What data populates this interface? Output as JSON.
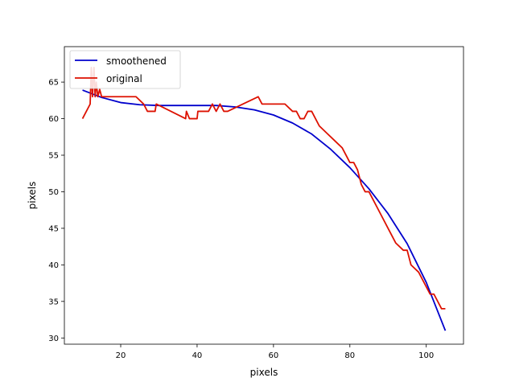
{
  "chart_data": {
    "type": "line",
    "title": "",
    "xlabel": "pixels",
    "ylabel": "pixels",
    "xlim": [
      5.25,
      109.75
    ],
    "ylim": [
      29.15,
      69.85
    ],
    "xticks": [
      20,
      40,
      60,
      80,
      100
    ],
    "yticks": [
      30,
      35,
      40,
      45,
      50,
      55,
      60,
      65
    ],
    "grid": false,
    "legend_position": "top-left",
    "series": [
      {
        "name": "smoothened",
        "color": "#0000cc",
        "x": [
          10,
          15,
          20,
          25,
          30,
          35,
          40,
          45,
          50,
          55,
          60,
          65,
          70,
          75,
          80,
          85,
          90,
          95,
          100,
          105
        ],
        "y": [
          63.9,
          62.9,
          62.2,
          61.9,
          61.8,
          61.8,
          61.8,
          61.8,
          61.6,
          61.2,
          60.5,
          59.4,
          57.9,
          55.8,
          53.3,
          50.4,
          47.0,
          42.9,
          37.6,
          31.0
        ]
      },
      {
        "name": "original",
        "color": "#dd1100",
        "x": [
          10,
          12,
          12.3,
          12.6,
          13,
          13.3,
          13.6,
          14,
          14.5,
          15,
          16,
          20,
          24,
          26,
          27,
          29,
          29.3,
          37,
          37.2,
          38,
          40,
          40.2,
          43,
          44,
          45,
          46,
          47,
          48,
          56,
          57,
          62,
          63,
          65,
          66,
          67,
          68,
          69,
          70,
          71,
          72,
          74,
          76,
          78,
          80,
          81,
          82,
          83,
          84,
          85,
          86,
          88,
          90,
          92,
          94,
          95,
          96,
          98,
          100,
          101,
          102,
          104,
          105
        ],
        "y": [
          60,
          62,
          67,
          63,
          67,
          63,
          65,
          63,
          64,
          63,
          63,
          63,
          63,
          62,
          61,
          61,
          62,
          60,
          61,
          60,
          60,
          61,
          61,
          62,
          61,
          62,
          61,
          61,
          63,
          62,
          62,
          62,
          61,
          61,
          60,
          60,
          61,
          61,
          60,
          59,
          58,
          57,
          56,
          54,
          54,
          53,
          51,
          50,
          50,
          49,
          47,
          45,
          43,
          42,
          42,
          40,
          39,
          37,
          36,
          36,
          34,
          34
        ]
      }
    ]
  }
}
